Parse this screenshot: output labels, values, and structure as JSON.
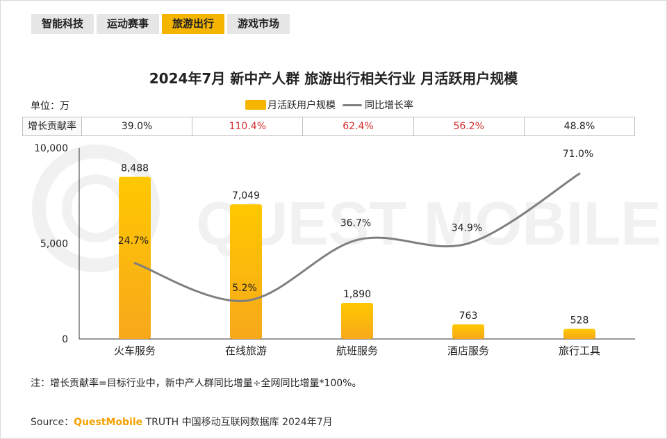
{
  "tabs": [
    {
      "label": "智能科技",
      "active": false
    },
    {
      "label": "运动赛事",
      "active": false
    },
    {
      "label": "旅游出行",
      "active": true
    },
    {
      "label": "游戏市场",
      "active": false
    }
  ],
  "unit_label": "单位：万",
  "contribution": {
    "header": "增长贡献率",
    "values": [
      "39.0%",
      "110.4%",
      "62.4%",
      "56.2%",
      "48.8%"
    ],
    "highlight": [
      false,
      true,
      true,
      true,
      false
    ],
    "highlight_color": "#d32f2f"
  },
  "watermark": {
    "text": "QUEST MOBILE"
  },
  "chart_data": {
    "type": "bar",
    "title": "2024年7月 新中产人群 旅游出行相关行业 月活跃用户规模",
    "categories": [
      "火车服务",
      "在线旅游",
      "航班服务",
      "酒店服务",
      "旅行工具"
    ],
    "series": [
      {
        "name": "月活跃用户规模",
        "type": "bar",
        "values": [
          8488,
          7049,
          1890,
          763,
          528
        ],
        "labels": [
          "8,488",
          "7,049",
          "1,890",
          "763",
          "528"
        ],
        "color": "#f7b500"
      },
      {
        "name": "同比增长率",
        "type": "line",
        "values": [
          24.7,
          5.2,
          36.7,
          34.9,
          71.0
        ],
        "labels": [
          "24.7%",
          "5.2%",
          "36.7%",
          "34.9%",
          "71.0%"
        ],
        "color": "#7f7f7f"
      }
    ],
    "ylim": [
      0,
      10000
    ],
    "y_ticks": [
      "0",
      "5,000",
      "10,000"
    ],
    "xlabel": "",
    "ylabel": "",
    "legend": "top-center",
    "grid": false
  },
  "note": "注：增长贡献率=目标行业中，新中产人群同比增量÷全网同比增量*100%。",
  "source": {
    "prefix": "Source：",
    "brand": "QuestMobile",
    "rest": " TRUTH 中国移动互联网数据库 2024年7月"
  }
}
